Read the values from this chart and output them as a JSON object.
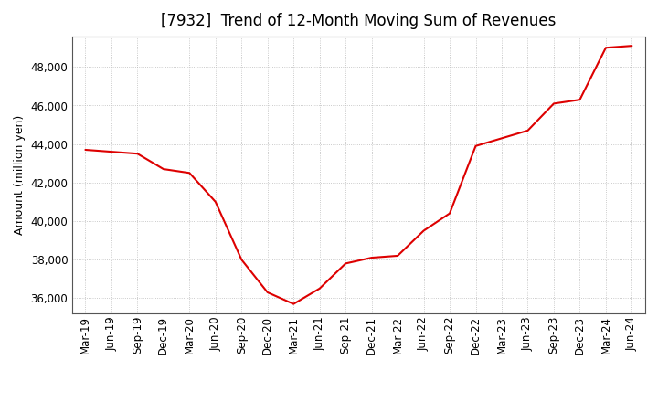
{
  "title": "[7932]  Trend of 12-Month Moving Sum of Revenues",
  "ylabel": "Amount (million yen)",
  "background_color": "#ffffff",
  "line_color": "#dd0000",
  "grid_color": "#bbbbbb",
  "x_labels": [
    "Mar-19",
    "Jun-19",
    "Sep-19",
    "Dec-19",
    "Mar-20",
    "Jun-20",
    "Sep-20",
    "Dec-20",
    "Mar-21",
    "Jun-21",
    "Sep-21",
    "Dec-21",
    "Mar-22",
    "Jun-22",
    "Sep-22",
    "Dec-22",
    "Mar-23",
    "Jun-23",
    "Sep-23",
    "Dec-23",
    "Mar-24",
    "Jun-24"
  ],
  "values": [
    43700,
    43600,
    43500,
    42700,
    42500,
    41000,
    38000,
    36300,
    35700,
    36500,
    37800,
    38100,
    38200,
    39500,
    40400,
    43900,
    44300,
    44700,
    46100,
    46300,
    49000,
    49100
  ],
  "ylim": [
    35200,
    49600
  ],
  "yticks": [
    36000,
    38000,
    40000,
    42000,
    44000,
    46000,
    48000
  ],
  "title_fontsize": 12,
  "axis_fontsize": 9,
  "tick_fontsize": 8.5
}
